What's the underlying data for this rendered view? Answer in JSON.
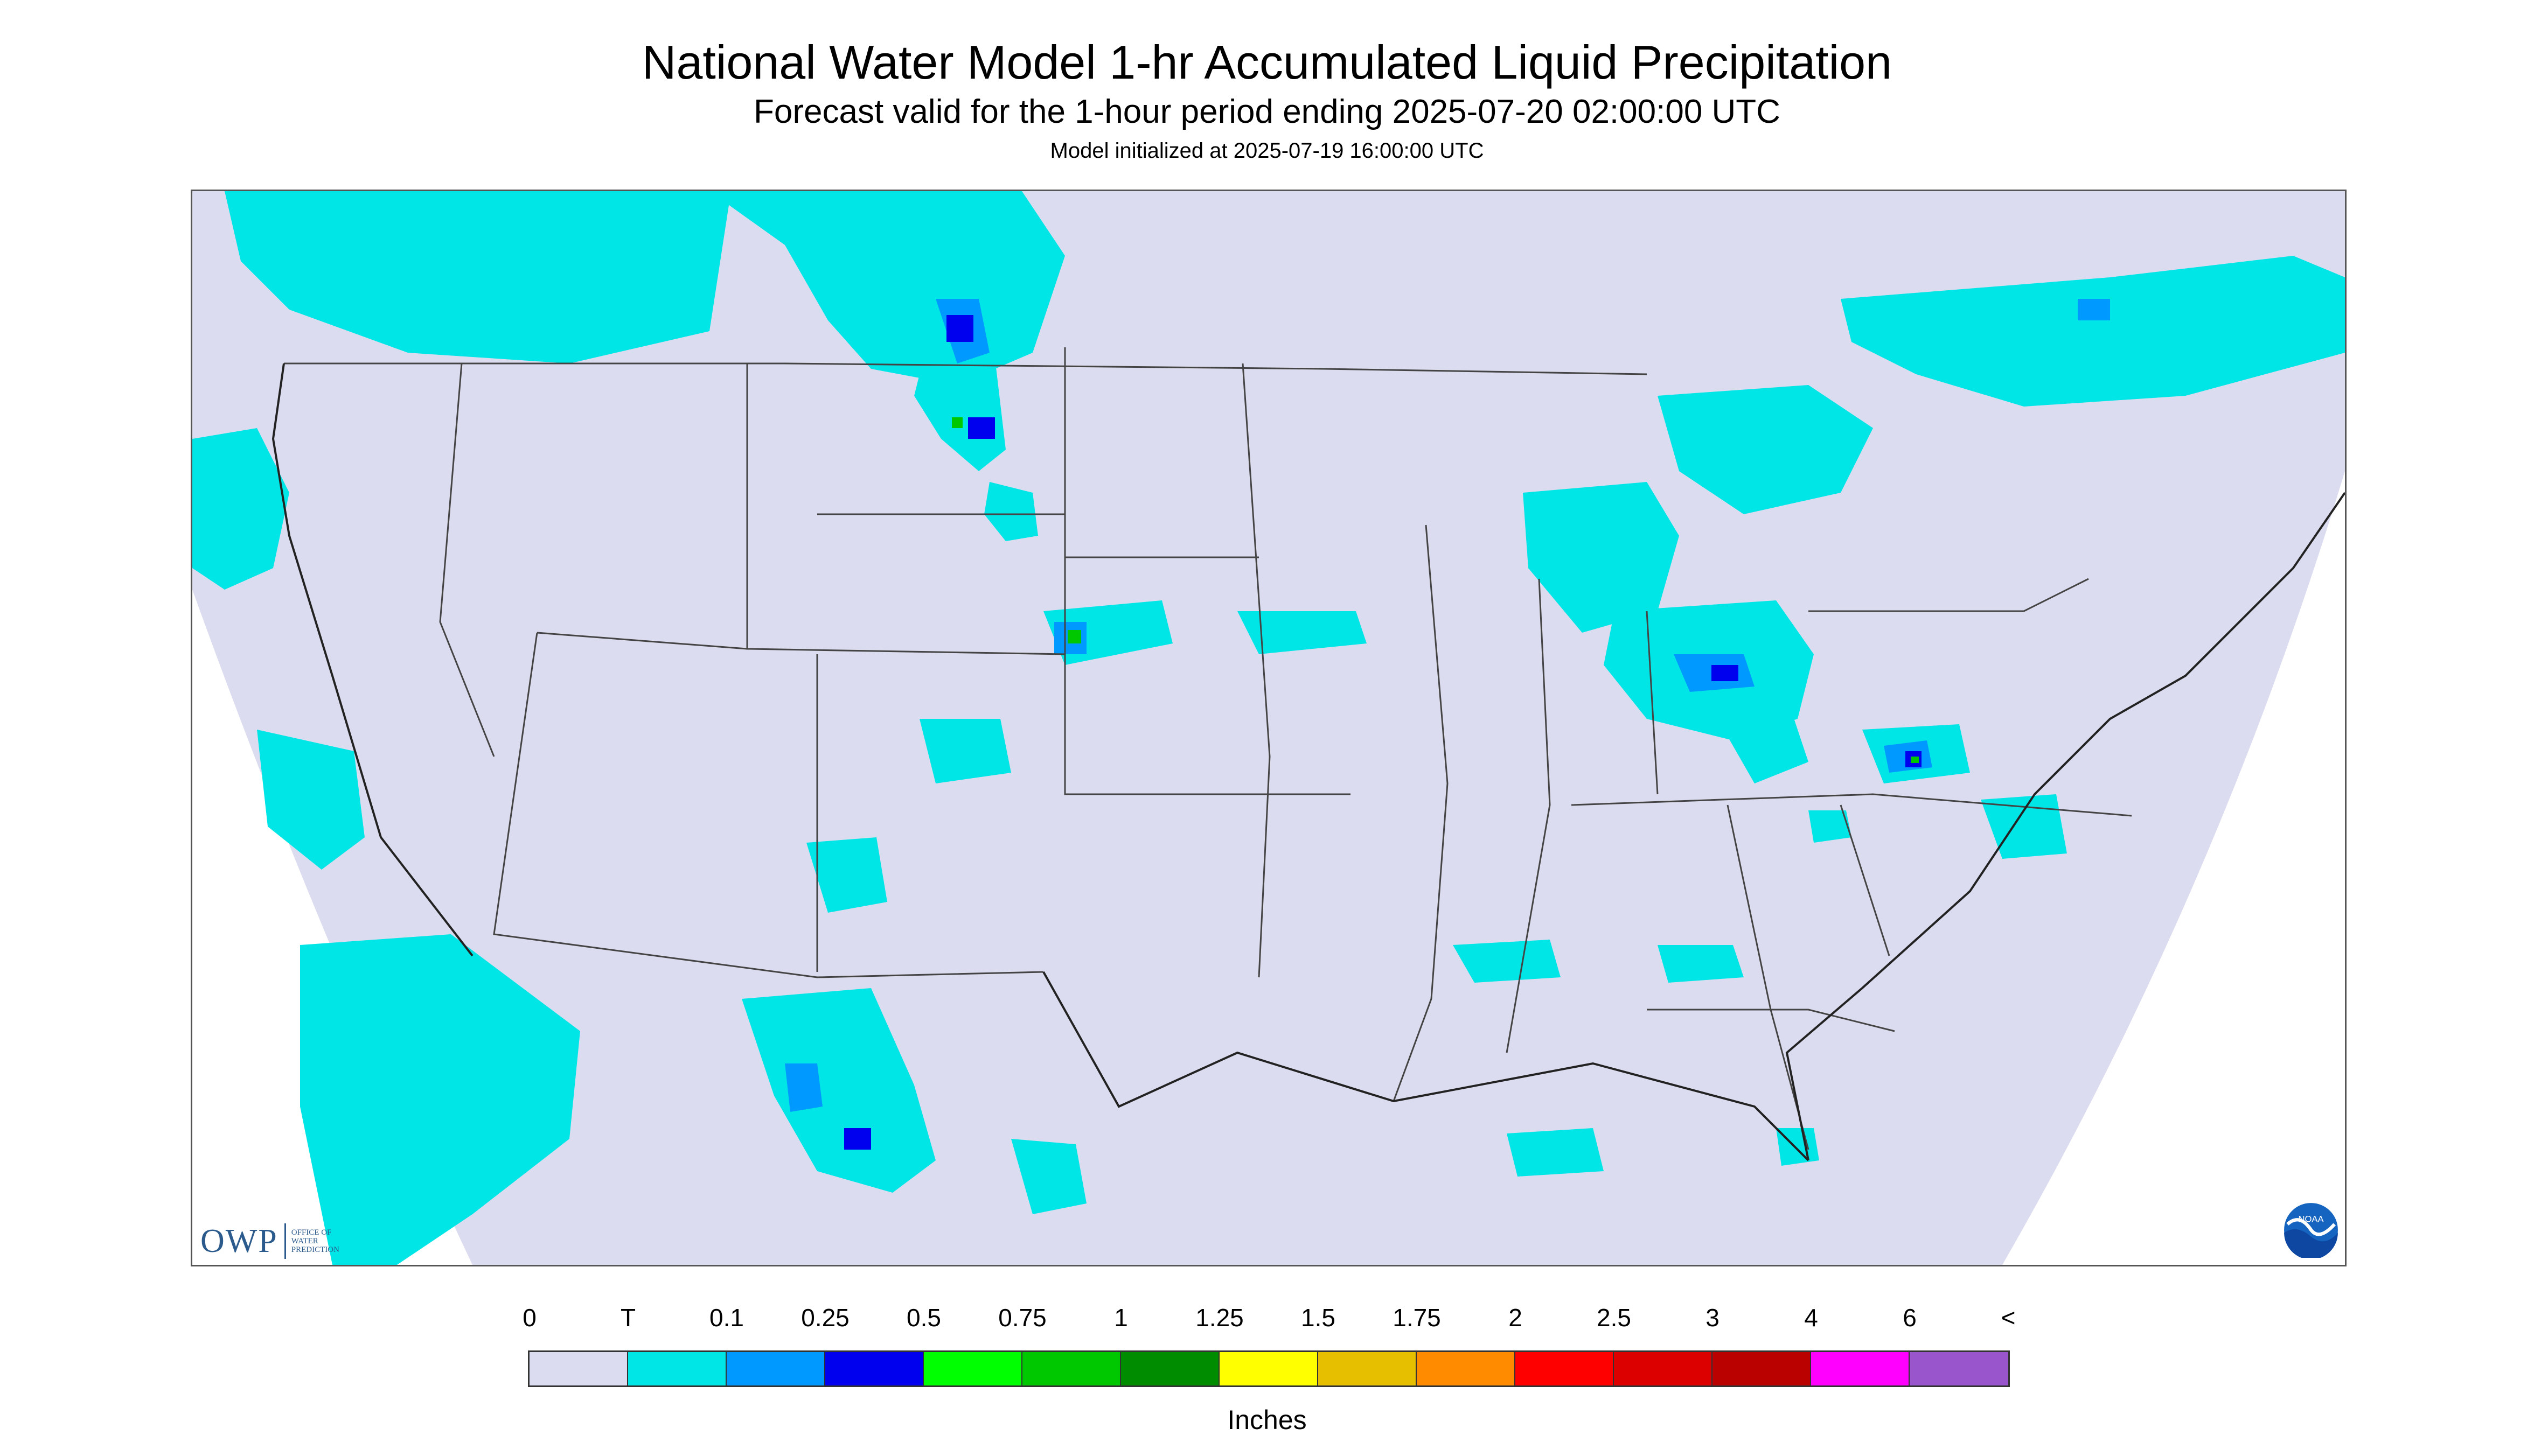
{
  "header": {
    "title": "National Water Model 1-hr Accumulated Liquid Precipitation",
    "subtitle": "Forecast valid for the 1-hour period ending 2025-07-20 02:00:00 UTC",
    "init": "Model initialized at 2025-07-19 16:00:00 UTC"
  },
  "logos": {
    "owp_mark": "OWP",
    "owp_line1": "Office of",
    "owp_line2": "Water",
    "owp_line3": "Prediction",
    "noaa": "NOAA"
  },
  "legend": {
    "units": "Inches",
    "labels": [
      "0",
      "T",
      "0.1",
      "0.25",
      "0.5",
      "0.75",
      "1",
      "1.25",
      "1.5",
      "1.75",
      "2",
      "2.5",
      "3",
      "4",
      "6",
      "<"
    ],
    "colors": [
      "#dcdcf0",
      "#00e5e5",
      "#0099ff",
      "#0000ee",
      "#00ff00",
      "#00c800",
      "#008c00",
      "#ffff00",
      "#e5bf00",
      "#ff8c00",
      "#ff0000",
      "#dd0000",
      "#bb0000",
      "#ff00ff",
      "#9955cc"
    ]
  },
  "map_colors": {
    "domain": "#dcdcf0",
    "trace": "#00e5e5",
    "light": "#0099ff",
    "moderate": "#0000ee",
    "heavy": "#00c800",
    "border": "#444444"
  }
}
